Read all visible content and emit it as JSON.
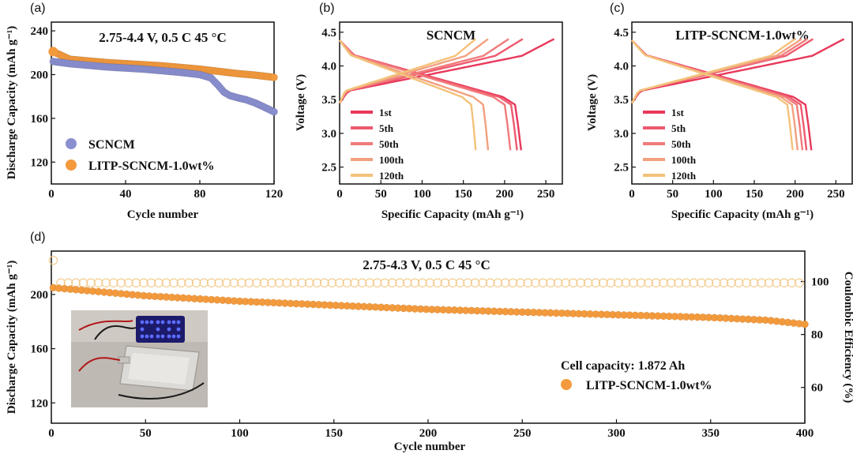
{
  "colors": {
    "scncm": "#8a8fd0",
    "litp": "#f39a3d",
    "ce_ring": "#f2c98a",
    "cycles": [
      "#e8395a",
      "#ee5a6e",
      "#f07b7b",
      "#f2a07f",
      "#f3c27a"
    ]
  },
  "chart_data": [
    {
      "panel": "(a)",
      "type": "scatter",
      "condition": "2.75-4.4 V, 0.5 C 45 °C",
      "xlabel": "Cycle number",
      "ylabel": "Discharge Capacity (mAh g⁻¹)",
      "xlim": [
        0,
        120
      ],
      "ylim": [
        100,
        248
      ],
      "xticks": [
        "0",
        "40",
        "80",
        "120"
      ],
      "xtick_values": [
        0,
        40,
        80,
        120
      ],
      "yticks": [
        "120",
        "160",
        "200",
        "240"
      ],
      "ytick_values": [
        120,
        160,
        200,
        240
      ],
      "legend_position": "bottom-left",
      "series": [
        {
          "name": "SCNCM",
          "x": [
            1,
            10,
            20,
            30,
            40,
            50,
            60,
            70,
            80,
            86,
            90,
            93,
            96,
            100,
            105,
            110,
            115,
            120
          ],
          "y": [
            212,
            210,
            208.5,
            207,
            206,
            205,
            203.5,
            202,
            200,
            197,
            190,
            184,
            181,
            179,
            177,
            174,
            170,
            166
          ]
        },
        {
          "name": "LITP-SCNCM-1.0wt%",
          "x": [
            1,
            10,
            20,
            30,
            40,
            50,
            60,
            70,
            80,
            90,
            100,
            110,
            120
          ],
          "y": [
            221,
            214,
            212.5,
            211,
            210,
            209,
            208,
            206.5,
            205,
            203,
            201,
            199.5,
            197.5
          ]
        }
      ]
    },
    {
      "panel": "(b)",
      "type": "line",
      "title": "SCNCM",
      "xlabel": "Specific Capacity (mAh g⁻¹)",
      "ylabel": "Voltage (V)",
      "xlim": [
        0,
        270
      ],
      "ylim": [
        2.25,
        4.65
      ],
      "xticks": [
        "0",
        "50",
        "100",
        "150",
        "200",
        "250"
      ],
      "xtick_values": [
        0,
        50,
        100,
        150,
        200,
        250
      ],
      "yticks": [
        "2.5",
        "3.0",
        "3.5",
        "4.0",
        "4.5"
      ],
      "ytick_values": [
        2.5,
        3.0,
        3.5,
        4.0,
        4.5
      ],
      "legend_position": "bottom-left",
      "series": [
        {
          "name": "1st",
          "charge_cap": 260,
          "discharge_cap": 220
        },
        {
          "name": "5th",
          "charge_cap": 222,
          "discharge_cap": 215
        },
        {
          "name": "50th",
          "charge_cap": 205,
          "discharge_cap": 207
        },
        {
          "name": "100th",
          "charge_cap": 180,
          "discharge_cap": 180
        },
        {
          "name": "120th",
          "charge_cap": 165,
          "discharge_cap": 165
        }
      ]
    },
    {
      "panel": "(c)",
      "type": "line",
      "title": "LITP-SCNCM-1.0wt%",
      "xlabel": "Specific Capacity (mAh g⁻¹)",
      "ylabel": "Voltage (V)",
      "xlim": [
        0,
        270
      ],
      "ylim": [
        2.25,
        4.65
      ],
      "xticks": [
        "0",
        "50",
        "100",
        "150",
        "200",
        "250"
      ],
      "xtick_values": [
        0,
        50,
        100,
        150,
        200,
        250
      ],
      "yticks": [
        "2.5",
        "3.0",
        "3.5",
        "4.0",
        "4.5"
      ],
      "ytick_values": [
        2.5,
        3.0,
        3.5,
        4.0,
        4.5
      ],
      "legend_position": "bottom-left",
      "series": [
        {
          "name": "1st",
          "charge_cap": 260,
          "discharge_cap": 220
        },
        {
          "name": "5th",
          "charge_cap": 222,
          "discharge_cap": 214
        },
        {
          "name": "50th",
          "charge_cap": 215,
          "discharge_cap": 209
        },
        {
          "name": "100th",
          "charge_cap": 208,
          "discharge_cap": 203
        },
        {
          "name": "120th",
          "charge_cap": 200,
          "discharge_cap": 197
        }
      ]
    },
    {
      "panel": "(d)",
      "type": "scatter",
      "condition": "2.75-4.3 V, 0.5 C 45 °C",
      "cell_capacity_text": "Cell capacity: 1.872 Ah",
      "xlabel": "Cycle number",
      "ylabel": "Discharge Capacity (mAh g⁻¹)",
      "y2label": "Coulombic  Efficiency (%)",
      "xlim": [
        0,
        400
      ],
      "ylim": [
        105,
        232
      ],
      "y2lim": [
        46.5,
        111.5
      ],
      "xticks": [
        "0",
        "50",
        "100",
        "150",
        "200",
        "250",
        "300",
        "350",
        "400"
      ],
      "xtick_values": [
        0,
        50,
        100,
        150,
        200,
        250,
        300,
        350,
        400
      ],
      "yticks": [
        "120",
        "160",
        "200"
      ],
      "ytick_values": [
        120,
        160,
        200
      ],
      "y2ticks": [
        "60",
        "80",
        "100"
      ],
      "y2tick_values": [
        60,
        80,
        100
      ],
      "legend_position": "bottom-right",
      "series": [
        {
          "name": "LITP-SCNCM-1.0wt%",
          "x": [
            1,
            50,
            100,
            150,
            200,
            250,
            300,
            350,
            380,
            400
          ],
          "y": [
            205,
            199,
            195,
            192,
            189,
            187,
            185,
            183,
            181,
            178
          ]
        },
        {
          "name": "Coulombic Efficiency",
          "x": [
            1,
            2,
            400
          ],
          "y": [
            108,
            99.5,
            99.5
          ]
        }
      ]
    }
  ]
}
